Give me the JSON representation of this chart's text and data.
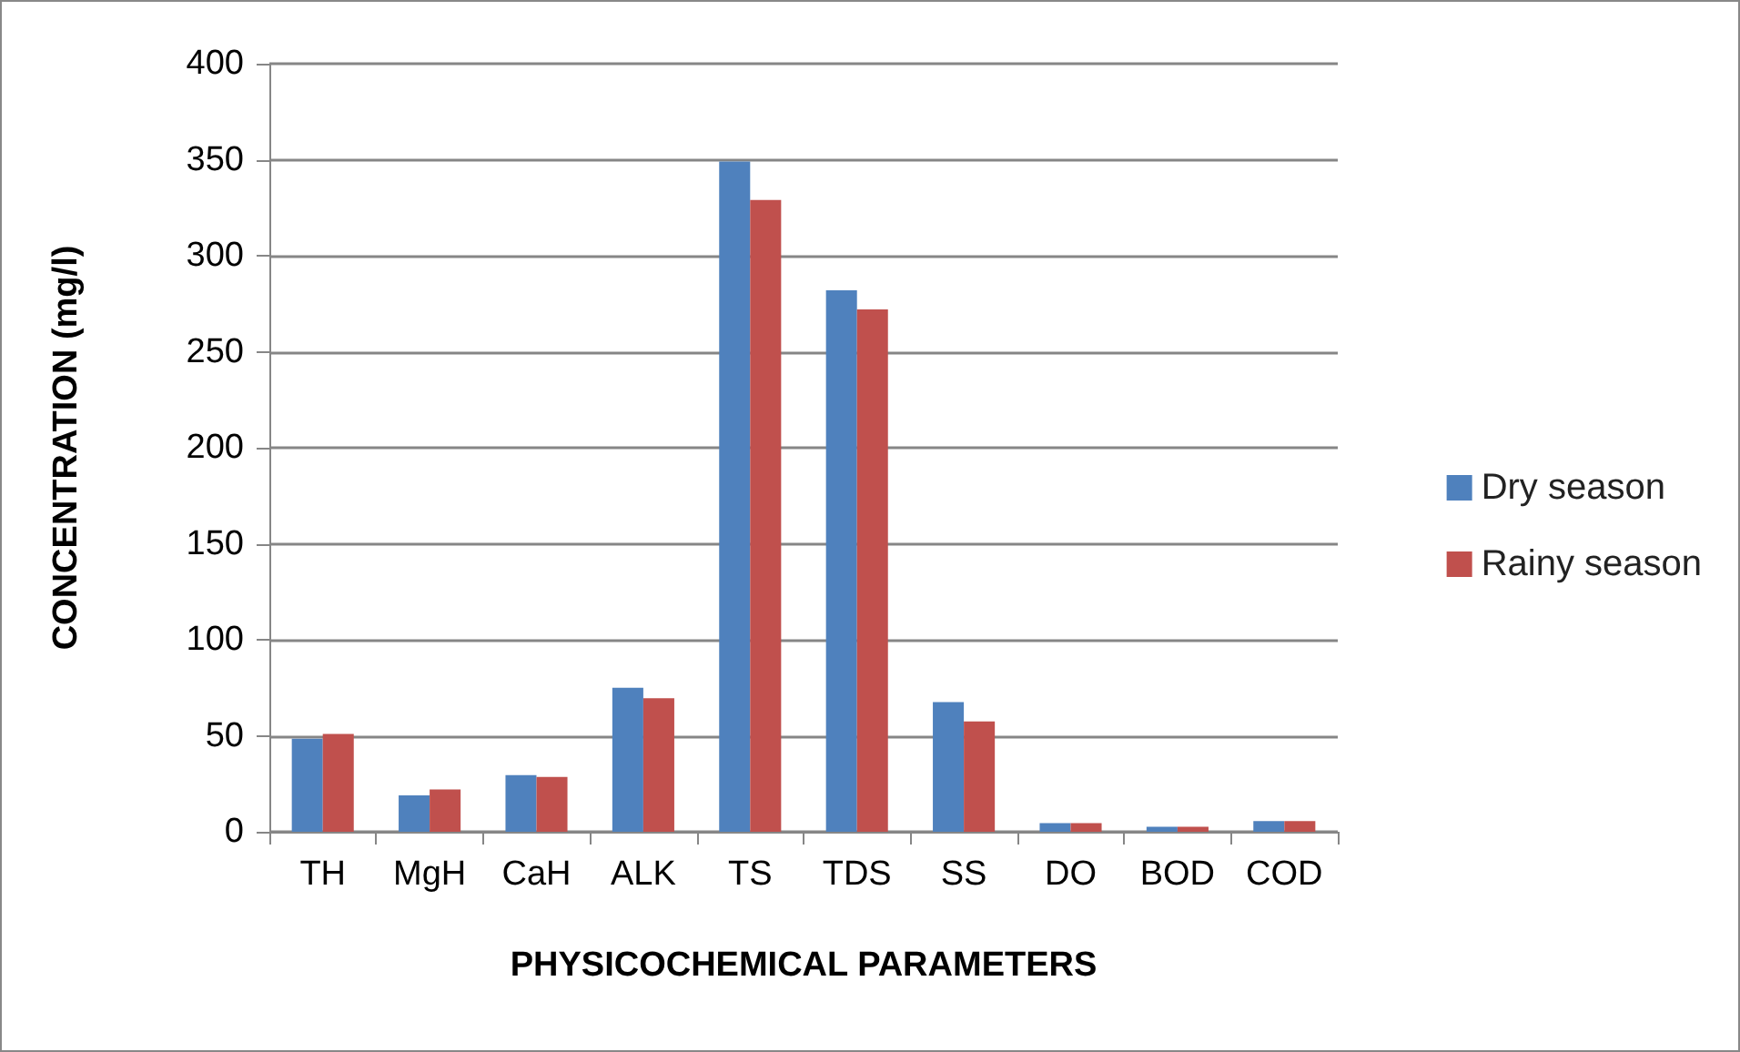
{
  "chart_data": {
    "type": "bar",
    "xlabel": "PHYSICOCHEMICAL PARAMETERS",
    "ylabel": "CONCENTRATION (mg/l)",
    "categories": [
      "TH",
      "MgH",
      "CaH",
      "ALK",
      "TS",
      "TDS",
      "SS",
      "DO",
      "BOD",
      "COD"
    ],
    "series": [
      {
        "name": "Dry season",
        "color": "#4f81bd",
        "values": [
          48.5,
          19,
          29.5,
          75,
          349,
          282,
          67.5,
          4.5,
          2.6,
          5.6
        ]
      },
      {
        "name": "Rainy season",
        "color": "#c0504d",
        "values": [
          51,
          22,
          28.5,
          69.5,
          329,
          272,
          57.5,
          4.5,
          2.6,
          5.6
        ]
      }
    ],
    "ylim": [
      0,
      400
    ],
    "yticks": [
      0,
      50,
      100,
      150,
      200,
      250,
      300,
      350,
      400
    ],
    "grid": "y",
    "legend": "right"
  }
}
